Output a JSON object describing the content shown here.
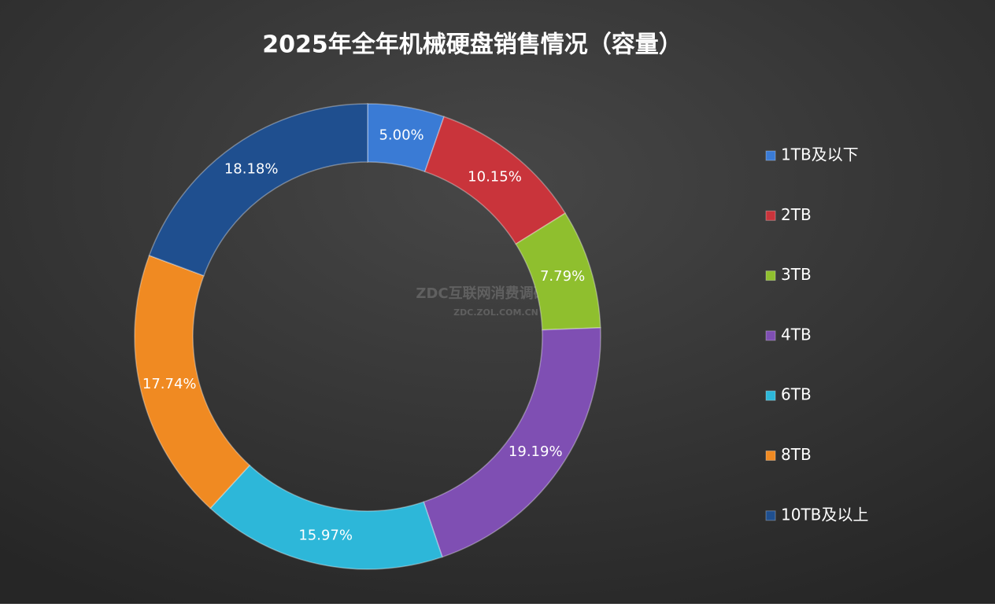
{
  "chart_data": {
    "type": "donut",
    "title": "2025年全年机械硬盘销售情况（容量）",
    "categories": [
      "1TB及以下",
      "2TB",
      "3TB",
      "4TB",
      "6TB",
      "8TB",
      "10TB及以上"
    ],
    "values": [
      5.0,
      10.15,
      7.79,
      19.19,
      15.97,
      17.74,
      18.18
    ],
    "value_labels": [
      "5.00%",
      "10.15%",
      "7.79%",
      "19.19%",
      "15.97%",
      "17.74%",
      "18.18%"
    ],
    "colors": [
      "#3a7bd5",
      "#c9343b",
      "#8fbf2e",
      "#7f4fb3",
      "#2db7d9",
      "#f08a22",
      "#1f4f8f"
    ],
    "legend": "right",
    "watermark": "ZDC互联网消费调研中心",
    "watermark_url": "ZDC.ZOL.COM.CN"
  }
}
